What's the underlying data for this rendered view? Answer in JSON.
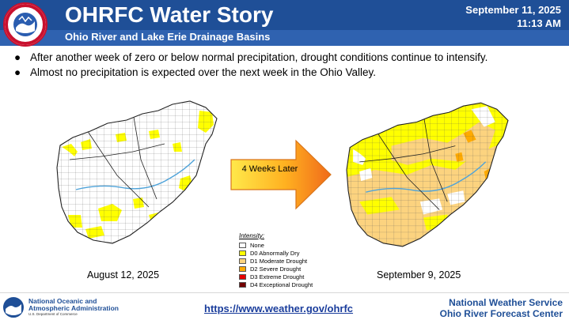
{
  "header": {
    "title": "OHRFC Water Story",
    "subtitle": "Ohio River and Lake Erie Drainage Basins",
    "date": "September 11, 2025",
    "time": "11:13 AM",
    "logo_text": "NATIONAL WEATHER SERVICE"
  },
  "bullets": [
    "After another week of zero or below normal precipitation, drought conditions continue to intensify.",
    "Almost no precipitation is expected over the next week in the Ohio Valley."
  ],
  "maps": {
    "left_caption": "August 12, 2025",
    "right_caption": "September 9, 2025",
    "arrow_label": "4 Weeks Later"
  },
  "legend": {
    "title": "Intensity:",
    "items": [
      {
        "label": "None",
        "color": "#ffffff"
      },
      {
        "label": "D0 Abnormally Dry",
        "color": "#ffff00"
      },
      {
        "label": "D1 Moderate Drought",
        "color": "#fcd37f"
      },
      {
        "label": "D2 Severe Drought",
        "color": "#ffaa00"
      },
      {
        "label": "D3 Extreme Drought",
        "color": "#e60000"
      },
      {
        "label": "D4 Exceptional Drought",
        "color": "#730000"
      }
    ]
  },
  "footer": {
    "noaa_line1": "National Oceanic and",
    "noaa_line2": "Atmospheric Administration",
    "noaa_line3": "U.S. Department of Commerce",
    "url": "https://www.weather.gov/ohrfc",
    "nws_line1": "National Weather Service",
    "nws_line2": "Ohio River Forecast Center"
  },
  "colors": {
    "header_bg": "#1f4f97",
    "subbar_bg": "#2f62b0",
    "d0": "#ffff00",
    "d1": "#fcd37f",
    "d2": "#ffaa00"
  }
}
